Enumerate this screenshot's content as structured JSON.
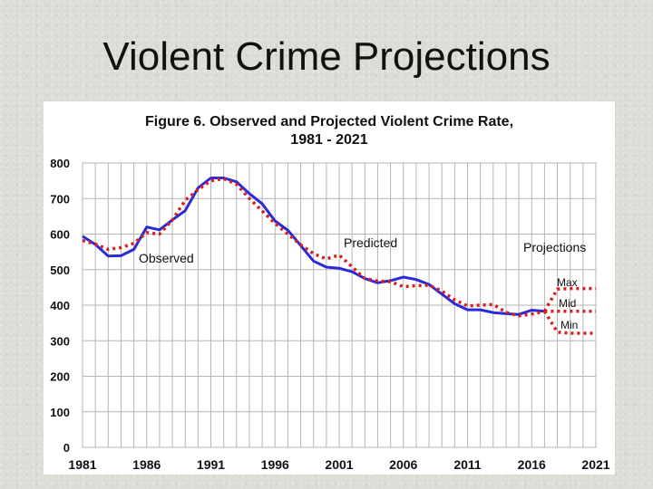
{
  "slide": {
    "title": "Violent Crime Projections"
  },
  "chart_data": {
    "type": "line",
    "title": "Figure 6. Observed and Projected Violent Crime Rate,",
    "subtitle": "1981 - 2021",
    "xlabel": "",
    "ylabel": "",
    "xlim": [
      1981,
      2021
    ],
    "ylim": [
      0,
      800
    ],
    "x_ticks": [
      1981,
      1986,
      1991,
      1996,
      2001,
      2006,
      2011,
      2016,
      2021
    ],
    "y_ticks": [
      0,
      100,
      200,
      300,
      400,
      500,
      600,
      700,
      800
    ],
    "grid": true,
    "series": [
      {
        "name": "Observed",
        "color": "#2a2ad8",
        "style": "solid",
        "x": [
          1981,
          1982,
          1983,
          1984,
          1985,
          1986,
          1987,
          1988,
          1989,
          1990,
          1991,
          1992,
          1993,
          1994,
          1995,
          1996,
          1997,
          1998,
          1999,
          2000,
          2001,
          2002,
          2003,
          2004,
          2005,
          2006,
          2007,
          2008,
          2009,
          2010,
          2011,
          2012,
          2013,
          2014,
          2015,
          2016,
          2017
        ],
        "values": [
          594,
          571,
          538,
          539,
          557,
          620,
          612,
          640,
          666,
          730,
          758,
          758,
          747,
          714,
          685,
          637,
          611,
          568,
          524,
          507,
          504,
          494,
          475,
          463,
          469,
          479,
          472,
          458,
          431,
          404,
          387,
          387,
          379,
          376,
          374,
          386,
          383
        ]
      },
      {
        "name": "Predicted",
        "color": "#d62020",
        "style": "dotted",
        "x": [
          1981,
          1982,
          1983,
          1984,
          1985,
          1986,
          1987,
          1988,
          1989,
          1990,
          1991,
          1992,
          1993,
          1994,
          1995,
          1996,
          1997,
          1998,
          1999,
          2000,
          2001,
          2002,
          2003,
          2004,
          2005,
          2006,
          2007,
          2008,
          2009,
          2010,
          2011,
          2012,
          2013,
          2014,
          2015,
          2016,
          2017
        ],
        "values": [
          582,
          572,
          557,
          562,
          574,
          604,
          600,
          640,
          695,
          725,
          750,
          756,
          740,
          700,
          665,
          630,
          600,
          570,
          545,
          530,
          541,
          508,
          475,
          468,
          466,
          452,
          455,
          456,
          440,
          415,
          398,
          400,
          402,
          380,
          370,
          375,
          382
        ]
      },
      {
        "name": "Max",
        "color": "#d62020",
        "style": "dotted",
        "x": [
          2017,
          2018,
          2019,
          2020,
          2021
        ],
        "values": [
          383,
          445,
          447,
          447,
          447
        ]
      },
      {
        "name": "Mid",
        "color": "#d62020",
        "style": "dotted",
        "x": [
          2017,
          2018,
          2019,
          2020,
          2021
        ],
        "values": [
          383,
          383,
          383,
          383,
          383
        ]
      },
      {
        "name": "Min",
        "color": "#d62020",
        "style": "dotted",
        "x": [
          2017,
          2018,
          2019,
          2020,
          2021
        ],
        "values": [
          383,
          324,
          321,
          321,
          321
        ]
      }
    ],
    "annotations": [
      {
        "text": "Observed"
      },
      {
        "text": "Predicted"
      },
      {
        "text": "Projections"
      },
      {
        "text": "Max"
      },
      {
        "text": "Mid"
      },
      {
        "text": "Min"
      }
    ]
  }
}
